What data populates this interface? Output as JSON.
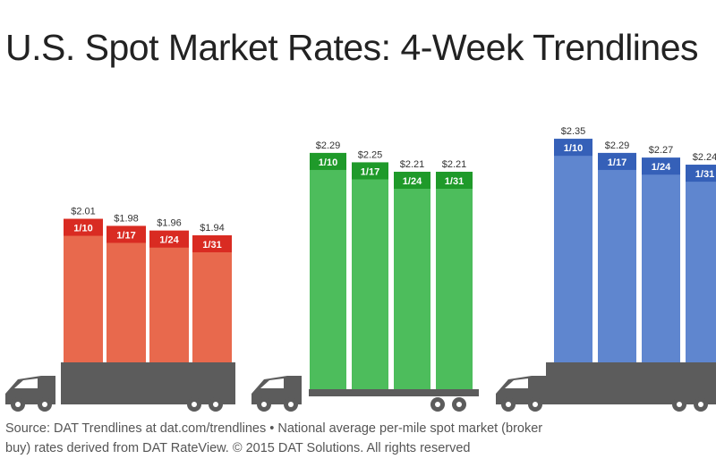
{
  "title": "U.S. Spot Market Rates: 4-Week Trendlines",
  "source_line1": "Source: DAT Trendlines at dat.com/trendlines • National average per-mile spot market (broker",
  "source_line2": "buy) rates derived from DAT RateView. © 2015 DAT Solutions. All rights reserved",
  "colors": {
    "series_1": "#e8694d",
    "series_1_tag": "#d92b22",
    "series_2": "#4dbd5c",
    "series_2_tag": "#1f9a2a",
    "series_3": "#5f86cf",
    "series_3_tag": "#3560b8",
    "truck": "#5c5c5c"
  },
  "chart_data": [
    {
      "type": "bar",
      "categories": [
        "1/10",
        "1/17",
        "1/24",
        "1/31"
      ],
      "values": [
        2.01,
        1.98,
        1.96,
        1.94
      ],
      "labels": [
        "$2.01",
        "$1.98",
        "$1.96",
        "$1.94"
      ]
    },
    {
      "type": "bar",
      "categories": [
        "1/10",
        "1/17",
        "1/24",
        "1/31"
      ],
      "values": [
        2.29,
        2.25,
        2.21,
        2.21
      ],
      "labels": [
        "$2.29",
        "$2.25",
        "$2.21",
        "$2.21"
      ]
    },
    {
      "type": "bar",
      "categories": [
        "1/10",
        "1/17",
        "1/24",
        "1/31"
      ],
      "values": [
        2.35,
        2.29,
        2.27,
        2.24
      ],
      "labels": [
        "$2.35",
        "$2.29",
        "$2.27",
        "$2.24"
      ]
    }
  ]
}
